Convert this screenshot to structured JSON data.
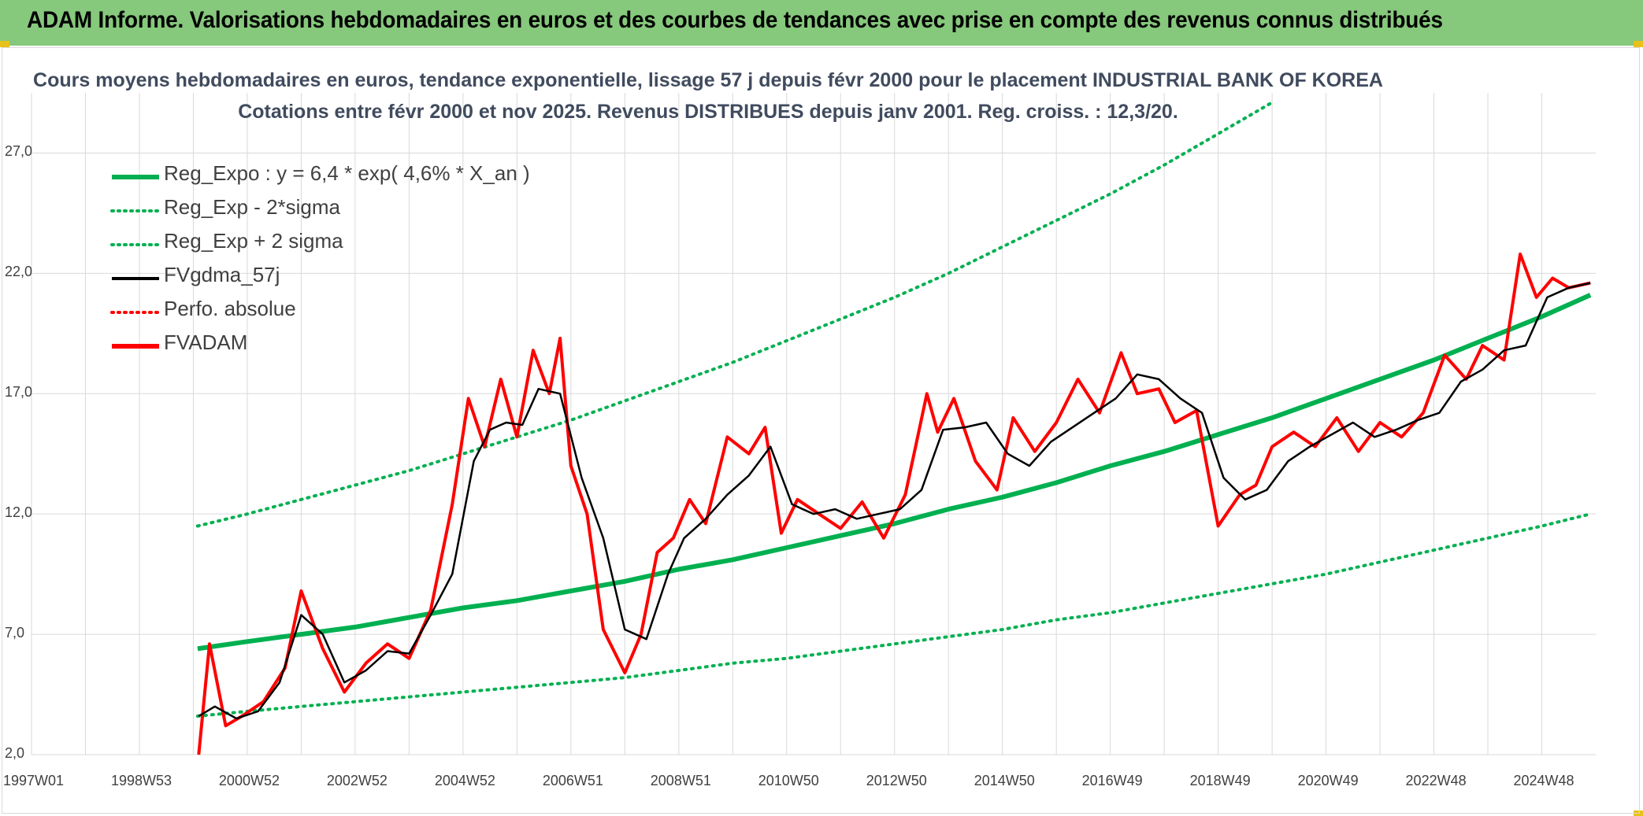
{
  "banner": {
    "title": "ADAM Informe. Valorisations hebdomadaires en euros et des courbes de tendances avec prise en compte des revenus connus distribués"
  },
  "colors": {
    "banner_bg": "#86c87c",
    "reg_expo": "#00b050",
    "sigma_band": "#00b050",
    "fvgdma": "#000000",
    "perfo": "#ff0000",
    "fvadam": "#ff0000",
    "grid": "#d9d9d9",
    "accent_corner": "#e8c21a"
  },
  "chart_data": {
    "type": "line",
    "title_line1": "Cours moyens hebdomadaires en euros, tendance exponentielle, lissage 57 j depuis févr 2000 pour le placement INDUSTRIAL BANK OF KOREA",
    "title_line2": "Cotations entre févr 2000 et nov 2025. Revenus DISTRIBUES depuis janv 2001. Reg. croiss. : 12,3/20.",
    "xlabel": "",
    "ylabel": "",
    "x_ticks": [
      "1997W01",
      "1998W53",
      "2000W52",
      "2002W52",
      "2004W52",
      "2006W51",
      "2008W51",
      "2010W50",
      "2012W50",
      "2014W50",
      "2016W49",
      "2018W49",
      "2020W49",
      "2022W48",
      "2024W48"
    ],
    "x_range_years": [
      1997.0,
      2026.0
    ],
    "y_ticks": [
      "2,0",
      "7,0",
      "12,0",
      "17,0",
      "22,0",
      "27,0"
    ],
    "ylim": [
      2.0,
      29.5
    ],
    "grid": "vertical and horizontal",
    "legend_position": "top-left",
    "legend": [
      {
        "label": "Reg_Expo : y = 6,4 * exp( 4,6% *  X_an )",
        "style": "solid-thick",
        "color": "#00b050"
      },
      {
        "label": "Reg_Exp - 2*sigma",
        "style": "dotted",
        "color": "#00b050"
      },
      {
        "label": "Reg_Exp + 2 sigma",
        "style": "dotted",
        "color": "#00b050"
      },
      {
        "label": "FVgdma_57j",
        "style": "solid",
        "color": "#000000"
      },
      {
        "label": "Perfo. absolue",
        "style": "dotted",
        "color": "#ff0000"
      },
      {
        "label": "FVADAM",
        "style": "solid-thick",
        "color": "#ff0000"
      }
    ],
    "series": [
      {
        "name": "Reg_Expo : y = 6,4 * exp( 4,6% *  X_an )",
        "x": [
          2000.08,
          2001.0,
          2002.0,
          2003.0,
          2004.0,
          2005.0,
          2006.0,
          2007.0,
          2008.0,
          2009.0,
          2010.0,
          2011.0,
          2012.0,
          2013.0,
          2014.0,
          2015.0,
          2016.0,
          2017.0,
          2018.0,
          2019.0,
          2020.0,
          2021.0,
          2022.0,
          2023.0,
          2024.0,
          2025.0,
          2025.9
        ],
        "y": [
          6.4,
          6.7,
          7.0,
          7.3,
          7.7,
          8.1,
          8.4,
          8.8,
          9.2,
          9.7,
          10.1,
          10.6,
          11.1,
          11.6,
          12.2,
          12.7,
          13.3,
          14.0,
          14.6,
          15.3,
          16.0,
          16.8,
          17.6,
          18.4,
          19.3,
          20.2,
          21.1
        ]
      },
      {
        "name": "Reg_Exp - 2*sigma",
        "x": [
          2000.08,
          2001.0,
          2002.0,
          2003.0,
          2004.0,
          2005.0,
          2006.0,
          2007.0,
          2008.0,
          2009.0,
          2010.0,
          2011.0,
          2012.0,
          2013.0,
          2014.0,
          2015.0,
          2016.0,
          2017.0,
          2018.0,
          2019.0,
          2020.0,
          2021.0,
          2022.0,
          2023.0,
          2024.0,
          2025.0,
          2025.9
        ],
        "y": [
          3.6,
          3.8,
          4.0,
          4.2,
          4.4,
          4.6,
          4.8,
          5.0,
          5.2,
          5.5,
          5.8,
          6.0,
          6.3,
          6.6,
          6.9,
          7.2,
          7.6,
          7.9,
          8.3,
          8.7,
          9.1,
          9.5,
          10.0,
          10.5,
          11.0,
          11.5,
          12.0
        ]
      },
      {
        "name": "Reg_Exp + 2 sigma",
        "x": [
          2000.08,
          2001.0,
          2002.0,
          2003.0,
          2004.0,
          2005.0,
          2006.0,
          2007.0,
          2008.0,
          2009.0,
          2010.0,
          2011.0,
          2012.0,
          2013.0,
          2014.0,
          2015.0,
          2016.0,
          2017.0,
          2018.0,
          2019.0,
          2020.0
        ],
        "y": [
          11.5,
          12.0,
          12.6,
          13.2,
          13.8,
          14.5,
          15.2,
          15.9,
          16.7,
          17.5,
          18.3,
          19.2,
          20.1,
          21.0,
          22.0,
          23.1,
          24.2,
          25.3,
          26.5,
          27.8,
          29.1
        ]
      },
      {
        "name": "FVgdma_57j",
        "x": [
          2000.1,
          2000.4,
          2000.8,
          2001.2,
          2001.6,
          2002.0,
          2002.4,
          2002.8,
          2003.2,
          2003.6,
          2004.0,
          2004.4,
          2004.8,
          2005.2,
          2005.5,
          2005.8,
          2006.1,
          2006.4,
          2006.8,
          2007.2,
          2007.6,
          2008.0,
          2008.4,
          2008.8,
          2009.1,
          2009.5,
          2009.9,
          2010.3,
          2010.7,
          2011.1,
          2011.5,
          2011.9,
          2012.3,
          2012.7,
          2013.1,
          2013.5,
          2013.9,
          2014.3,
          2014.7,
          2015.1,
          2015.5,
          2015.9,
          2016.3,
          2016.7,
          2017.1,
          2017.5,
          2017.9,
          2018.3,
          2018.7,
          2019.1,
          2019.5,
          2019.9,
          2020.3,
          2020.7,
          2021.1,
          2021.5,
          2021.9,
          2022.3,
          2022.7,
          2023.1,
          2023.5,
          2023.9,
          2024.3,
          2024.7,
          2025.1,
          2025.5,
          2025.9
        ],
        "y": [
          3.6,
          4.0,
          3.5,
          3.8,
          5.0,
          7.8,
          7.0,
          5.0,
          5.5,
          6.3,
          6.2,
          7.8,
          9.5,
          14.2,
          15.5,
          15.8,
          15.7,
          17.2,
          17.0,
          13.5,
          11.0,
          7.2,
          6.8,
          9.5,
          11.0,
          11.8,
          12.8,
          13.6,
          14.8,
          12.4,
          12.0,
          12.2,
          11.8,
          12.0,
          12.2,
          13.0,
          15.5,
          15.6,
          15.8,
          14.5,
          14.0,
          15.0,
          15.6,
          16.2,
          16.8,
          17.8,
          17.6,
          16.8,
          16.2,
          13.5,
          12.6,
          13.0,
          14.2,
          14.8,
          15.3,
          15.8,
          15.2,
          15.5,
          15.9,
          16.2,
          17.5,
          18.0,
          18.8,
          19.0,
          21.0,
          21.4,
          21.6
        ]
      },
      {
        "name": "Perfo. absolue",
        "x": [
          2000.1,
          2000.3,
          2000.6,
          2000.9,
          2001.3,
          2001.7,
          2002.0,
          2002.4,
          2002.8,
          2003.2,
          2003.6,
          2004.0,
          2004.4,
          2004.8,
          2005.1,
          2005.4,
          2005.7,
          2006.0,
          2006.3,
          2006.6,
          2006.8,
          2007.0,
          2007.3,
          2007.6,
          2008.0,
          2008.3,
          2008.6,
          2008.9,
          2009.2,
          2009.5,
          2009.9,
          2010.3,
          2010.6,
          2010.9,
          2011.2,
          2011.6,
          2012.0,
          2012.4,
          2012.8,
          2013.2,
          2013.6,
          2013.8,
          2014.1,
          2014.5,
          2014.9,
          2015.2,
          2015.6,
          2016.0,
          2016.4,
          2016.8,
          2017.2,
          2017.5,
          2017.9,
          2018.2,
          2018.6,
          2019.0,
          2019.4,
          2019.7,
          2020.0,
          2020.4,
          2020.8,
          2021.2,
          2021.6,
          2022.0,
          2022.4,
          2022.8,
          2023.2,
          2023.6,
          2023.9,
          2024.3,
          2024.6,
          2024.9,
          2025.2,
          2025.5,
          2025.9
        ],
        "y": [
          2.0,
          6.6,
          3.2,
          3.6,
          4.2,
          5.6,
          8.8,
          6.4,
          4.6,
          5.8,
          6.6,
          6.0,
          8.0,
          12.4,
          16.8,
          14.8,
          17.6,
          15.2,
          18.8,
          17.0,
          19.3,
          14.0,
          12.0,
          7.2,
          5.4,
          7.0,
          10.4,
          11.0,
          12.6,
          11.6,
          15.2,
          14.5,
          15.6,
          11.2,
          12.6,
          12.0,
          11.4,
          12.5,
          11.0,
          12.8,
          17.0,
          15.4,
          16.8,
          14.2,
          13.0,
          16.0,
          14.6,
          15.8,
          17.6,
          16.2,
          18.7,
          17.0,
          17.2,
          15.8,
          16.3,
          11.5,
          12.8,
          13.2,
          14.8,
          15.4,
          14.8,
          16.0,
          14.6,
          15.8,
          15.2,
          16.2,
          18.6,
          17.6,
          19.0,
          18.4,
          22.8,
          21.0,
          21.8,
          21.4,
          21.6
        ]
      },
      {
        "name": "FVADAM",
        "x": [
          2000.1,
          2000.3,
          2000.6,
          2000.9,
          2001.3,
          2001.7,
          2002.0,
          2002.4,
          2002.8,
          2003.2,
          2003.6,
          2004.0,
          2004.4,
          2004.8,
          2005.1,
          2005.4,
          2005.7,
          2006.0,
          2006.3,
          2006.6,
          2006.8,
          2007.0,
          2007.3,
          2007.6,
          2008.0,
          2008.3,
          2008.6,
          2008.9,
          2009.2,
          2009.5,
          2009.9,
          2010.3,
          2010.6,
          2010.9,
          2011.2,
          2011.6,
          2012.0,
          2012.4,
          2012.8,
          2013.2,
          2013.6,
          2013.8,
          2014.1,
          2014.5,
          2014.9,
          2015.2,
          2015.6,
          2016.0,
          2016.4,
          2016.8,
          2017.2,
          2017.5,
          2017.9,
          2018.2,
          2018.6,
          2019.0,
          2019.4,
          2019.7,
          2020.0,
          2020.4,
          2020.8,
          2021.2,
          2021.6,
          2022.0,
          2022.4,
          2022.8,
          2023.2,
          2023.6,
          2023.9,
          2024.3,
          2024.6,
          2024.9,
          2025.2,
          2025.5,
          2025.9
        ],
        "y": [
          2.0,
          6.6,
          3.2,
          3.6,
          4.2,
          5.6,
          8.8,
          6.4,
          4.6,
          5.8,
          6.6,
          6.0,
          8.0,
          12.4,
          16.8,
          14.8,
          17.6,
          15.2,
          18.8,
          17.0,
          19.3,
          14.0,
          12.0,
          7.2,
          5.4,
          7.0,
          10.4,
          11.0,
          12.6,
          11.6,
          15.2,
          14.5,
          15.6,
          11.2,
          12.6,
          12.0,
          11.4,
          12.5,
          11.0,
          12.8,
          17.0,
          15.4,
          16.8,
          14.2,
          13.0,
          16.0,
          14.6,
          15.8,
          17.6,
          16.2,
          18.7,
          17.0,
          17.2,
          15.8,
          16.3,
          11.5,
          12.8,
          13.2,
          14.8,
          15.4,
          14.8,
          16.0,
          14.6,
          15.8,
          15.2,
          16.2,
          18.6,
          17.6,
          19.0,
          18.4,
          22.8,
          21.0,
          21.8,
          21.4,
          21.6
        ]
      }
    ]
  }
}
